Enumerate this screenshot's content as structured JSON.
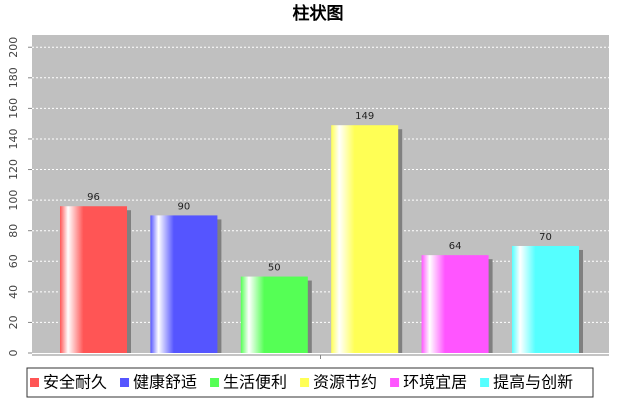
{
  "chart_data": {
    "type": "bar",
    "title": "柱状图",
    "categories": [
      null
    ],
    "series": [
      {
        "name": "安全耐久",
        "color": "#ff5555",
        "values": [
          96
        ]
      },
      {
        "name": "健康舒适",
        "color": "#5555ff",
        "values": [
          90
        ]
      },
      {
        "name": "生活便利",
        "color": "#55ff55",
        "values": [
          50
        ]
      },
      {
        "name": "资源节约",
        "color": "#ffff55",
        "values": [
          149
        ]
      },
      {
        "name": "环境宜居",
        "color": "#ff55ff",
        "values": [
          64
        ]
      },
      {
        "name": "提高与创新",
        "color": "#55ffff",
        "values": [
          70
        ]
      }
    ],
    "ylim": [
      0,
      208
    ],
    "yticks": [
      0,
      20,
      40,
      60,
      80,
      100,
      120,
      140,
      160,
      180,
      200
    ],
    "grid": true,
    "legend": "bottom"
  }
}
